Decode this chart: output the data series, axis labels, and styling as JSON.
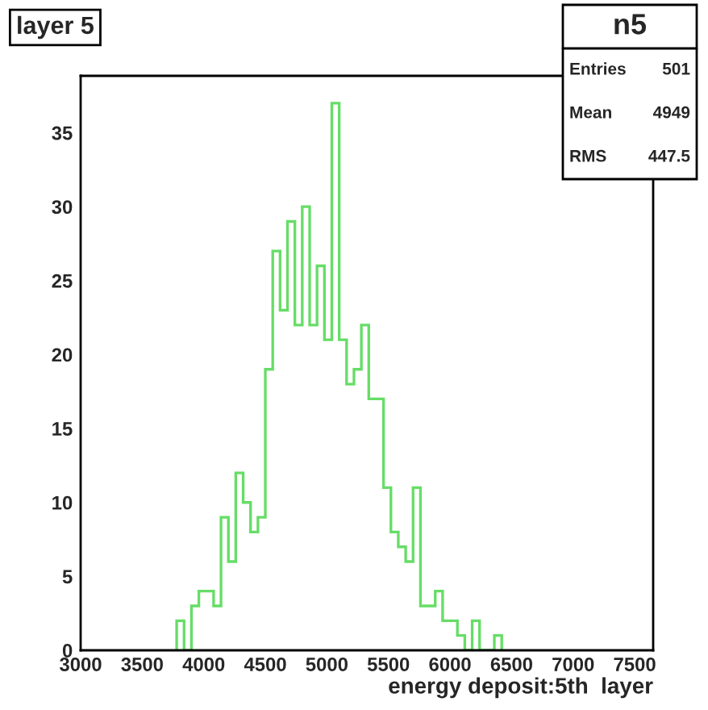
{
  "chart_data": {
    "type": "histogram",
    "title": "layer 5",
    "xlabel": "energy deposit:5th  layer",
    "bins": [
      3780,
      3840,
      3900,
      3960,
      4020,
      4080,
      4140,
      4200,
      4260,
      4320,
      4380,
      4440,
      4500,
      4560,
      4620,
      4680,
      4740,
      4800,
      4860,
      4920,
      4980,
      5040,
      5100,
      5160,
      5220,
      5280,
      5340,
      5400,
      5460,
      5520,
      5580,
      5640,
      5700,
      5760,
      5820,
      5880,
      5940,
      6000,
      6060,
      6120,
      6180,
      6240,
      6300,
      6360,
      6420
    ],
    "values": [
      2,
      0,
      3,
      4,
      4,
      3,
      9,
      6,
      12,
      10,
      8,
      9,
      19,
      27,
      23,
      29,
      22,
      30,
      22,
      26,
      21,
      37,
      21,
      18,
      19,
      22,
      17,
      17,
      11,
      8,
      7,
      6,
      11,
      3,
      3,
      4,
      2,
      2,
      1,
      0,
      2,
      0,
      0,
      1
    ],
    "color": "#66dd66",
    "xlim": [
      3000,
      7650
    ],
    "xticks": [
      3000,
      3500,
      4000,
      4500,
      5000,
      5500,
      6000,
      6500,
      7000,
      7500
    ],
    "ylim": [
      0,
      38.85
    ],
    "yticks": [
      0,
      5,
      10,
      15,
      20,
      25,
      30,
      35
    ],
    "grid": false,
    "annotations": [
      "n5",
      "Entries",
      "501",
      "Mean",
      "4949",
      "RMS",
      "447.5"
    ]
  }
}
